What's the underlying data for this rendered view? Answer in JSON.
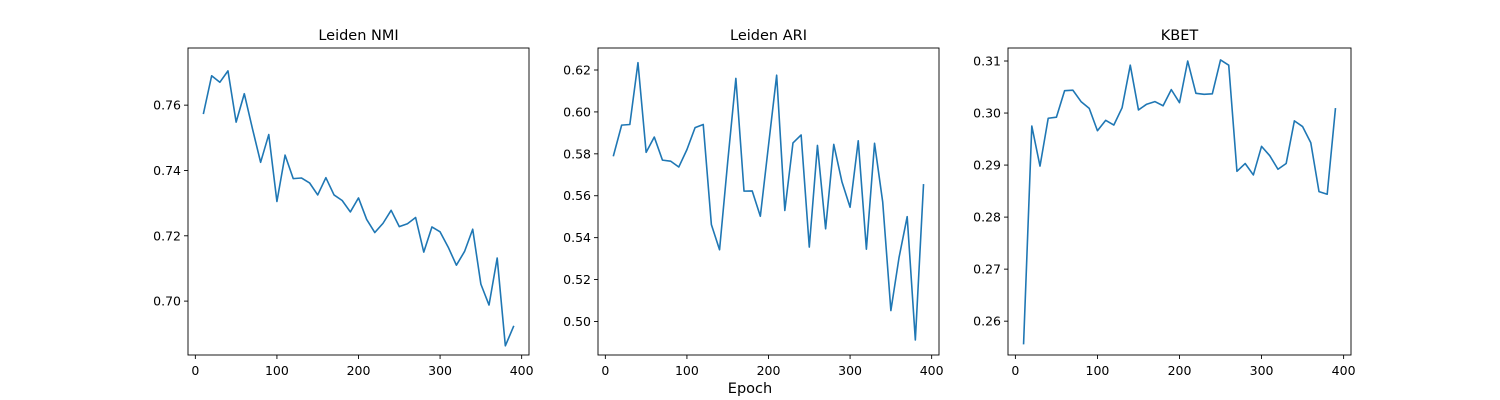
{
  "figure": {
    "xlabel": "Epoch",
    "line_color": "#1f77b4"
  },
  "chart_data": [
    {
      "type": "line",
      "title": "Leiden NMI",
      "xlabel": "",
      "ylabel": "",
      "xlim": [
        -9,
        409
      ],
      "ylim": [
        0.6835,
        0.7775
      ],
      "xticks": [
        0,
        100,
        200,
        300,
        400
      ],
      "yticks": [
        0.7,
        0.72,
        0.74,
        0.76
      ],
      "ytick_labels": [
        "0.70",
        "0.72",
        "0.74",
        "0.76"
      ],
      "grid": false,
      "series": [
        {
          "x": [
            10,
            20,
            30,
            40,
            50,
            60,
            70,
            80,
            90,
            100,
            110,
            120,
            130,
            140,
            150,
            160,
            170,
            180,
            190,
            200,
            210,
            220,
            230,
            240,
            250,
            260,
            270,
            280,
            290,
            300,
            310,
            320,
            330,
            340,
            350,
            360,
            370,
            380,
            390
          ],
          "values": [
            0.7575,
            0.769,
            0.767,
            0.7705,
            0.7548,
            0.7635,
            0.7528,
            0.7425,
            0.751,
            0.7305,
            0.7447,
            0.7375,
            0.7377,
            0.7362,
            0.7325,
            0.7378,
            0.7325,
            0.7308,
            0.7273,
            0.7316,
            0.725,
            0.721,
            0.7238,
            0.7278,
            0.7228,
            0.7237,
            0.7256,
            0.715,
            0.7227,
            0.7212,
            0.7165,
            0.711,
            0.7152,
            0.722,
            0.7052,
            0.6988,
            0.7132,
            0.6863,
            0.6922
          ]
        }
      ]
    },
    {
      "type": "line",
      "title": "Leiden ARI",
      "xlabel": "",
      "ylabel": "",
      "xlim": [
        -9,
        409
      ],
      "ylim": [
        0.484,
        0.6305
      ],
      "xticks": [
        0,
        100,
        200,
        300,
        400
      ],
      "yticks": [
        0.5,
        0.52,
        0.54,
        0.56,
        0.58,
        0.6,
        0.62
      ],
      "ytick_labels": [
        "0.50",
        "0.52",
        "0.54",
        "0.56",
        "0.58",
        "0.60",
        "0.62"
      ],
      "grid": false,
      "series": [
        {
          "x": [
            10,
            20,
            30,
            40,
            50,
            60,
            70,
            80,
            90,
            100,
            110,
            120,
            130,
            140,
            150,
            160,
            170,
            180,
            190,
            200,
            210,
            220,
            230,
            240,
            250,
            260,
            270,
            280,
            290,
            300,
            310,
            320,
            330,
            340,
            350,
            360,
            370,
            380,
            390
          ],
          "values": [
            0.5792,
            0.5937,
            0.594,
            0.6235,
            0.5807,
            0.588,
            0.577,
            0.5765,
            0.5737,
            0.582,
            0.5925,
            0.594,
            0.5462,
            0.5342,
            0.5762,
            0.616,
            0.5622,
            0.5623,
            0.5502,
            0.584,
            0.6175,
            0.553,
            0.5852,
            0.589,
            0.5355,
            0.584,
            0.5442,
            0.5845,
            0.5667,
            0.5545,
            0.5862,
            0.5345,
            0.585,
            0.557,
            0.5052,
            0.5305,
            0.55,
            0.4912,
            0.5652
          ]
        }
      ]
    },
    {
      "type": "line",
      "title": "KBET",
      "xlabel": "",
      "ylabel": "",
      "xlim": [
        -9,
        409
      ],
      "ylim": [
        0.2535,
        0.3125
      ],
      "xticks": [
        0,
        100,
        200,
        300,
        400
      ],
      "yticks": [
        0.26,
        0.27,
        0.28,
        0.29,
        0.3,
        0.31
      ],
      "ytick_labels": [
        "0.26",
        "0.27",
        "0.28",
        "0.29",
        "0.30",
        "0.31"
      ],
      "grid": false,
      "series": [
        {
          "x": [
            10,
            20,
            30,
            40,
            50,
            60,
            70,
            80,
            90,
            100,
            110,
            120,
            130,
            140,
            150,
            160,
            170,
            180,
            190,
            200,
            210,
            220,
            230,
            240,
            250,
            260,
            270,
            280,
            290,
            300,
            310,
            320,
            330,
            340,
            350,
            360,
            370,
            380,
            390
          ],
          "values": [
            0.2557,
            0.2975,
            0.2898,
            0.299,
            0.2992,
            0.3043,
            0.3044,
            0.3022,
            0.3009,
            0.2966,
            0.2986,
            0.2977,
            0.301,
            0.3092,
            0.3006,
            0.3017,
            0.3022,
            0.3014,
            0.3045,
            0.302,
            0.31,
            0.3038,
            0.3036,
            0.3037,
            0.3102,
            0.3092,
            0.2888,
            0.2903,
            0.2881,
            0.2936,
            0.2918,
            0.2892,
            0.2903,
            0.2985,
            0.2974,
            0.2943,
            0.2849,
            0.2844,
            0.3008
          ]
        }
      ]
    }
  ]
}
